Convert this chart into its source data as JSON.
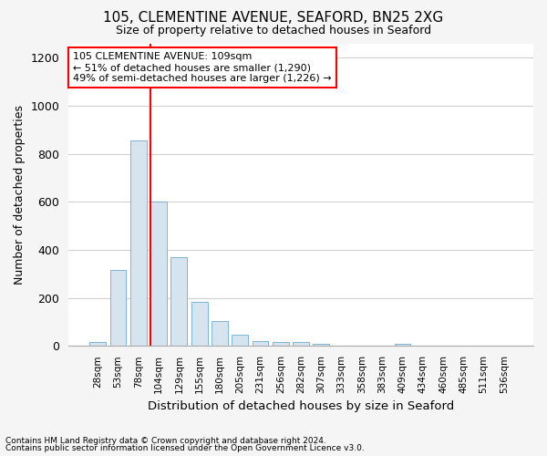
{
  "title1": "105, CLEMENTINE AVENUE, SEAFORD, BN25 2XG",
  "title2": "Size of property relative to detached houses in Seaford",
  "xlabel": "Distribution of detached houses by size in Seaford",
  "ylabel": "Number of detached properties",
  "footnote1": "Contains HM Land Registry data © Crown copyright and database right 2024.",
  "footnote2": "Contains public sector information licensed under the Open Government Licence v3.0.",
  "annotation_line1": "105 CLEMENTINE AVENUE: 109sqm",
  "annotation_line2": "← 51% of detached houses are smaller (1,290)",
  "annotation_line3": "49% of semi-detached houses are larger (1,226) →",
  "bar_color": "#d6e4f0",
  "bar_edge_color": "#7fb3d3",
  "categories": [
    "28sqm",
    "53sqm",
    "78sqm",
    "104sqm",
    "129sqm",
    "155sqm",
    "180sqm",
    "205sqm",
    "231sqm",
    "256sqm",
    "282sqm",
    "307sqm",
    "333sqm",
    "358sqm",
    "383sqm",
    "409sqm",
    "434sqm",
    "460sqm",
    "485sqm",
    "511sqm",
    "536sqm"
  ],
  "values": [
    15,
    315,
    855,
    600,
    370,
    185,
    105,
    45,
    20,
    18,
    18,
    10,
    0,
    0,
    0,
    10,
    0,
    0,
    0,
    0,
    0
  ],
  "ylim": [
    0,
    1260
  ],
  "yticks": [
    0,
    200,
    400,
    600,
    800,
    1000,
    1200
  ],
  "red_line_bar_index": 3,
  "figsize": [
    6.0,
    5.0
  ],
  "dpi": 100,
  "bg_color": "#f5f5f5",
  "plot_bg_color": "#ffffff",
  "grid_color": "#d0d0d0"
}
